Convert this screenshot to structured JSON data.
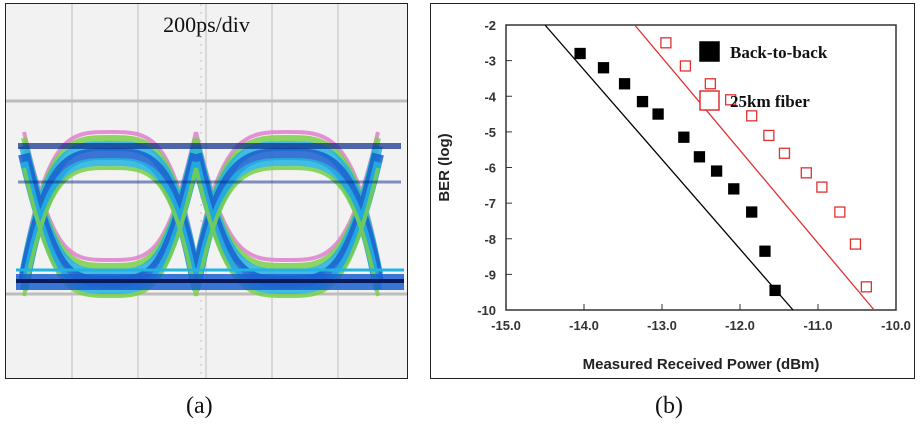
{
  "panel_a": {
    "scale_label": "200ps/div",
    "caption": "(a)"
  },
  "panel_b": {
    "caption": "(b)"
  },
  "chart_data": {
    "type": "scatter",
    "title": "",
    "xlabel": "Measured Received Power (dBm)",
    "ylabel": "BER (log)",
    "xlim": [
      -15.0,
      -10.0
    ],
    "ylim": [
      -10,
      -2
    ],
    "x_ticks": [
      "-15.0",
      "-14.0",
      "-13.0",
      "-12.0",
      "-11.0",
      "-10.0"
    ],
    "y_ticks": [
      "-2",
      "-3",
      "-4",
      "-5",
      "-6",
      "-7",
      "-8",
      "-9",
      "-10"
    ],
    "grid": false,
    "legend_position": "top-right",
    "series": [
      {
        "name": "Back-to-back",
        "marker": "filled-square",
        "color": "#000000",
        "x": [
          -14.05,
          -13.75,
          -13.48,
          -13.25,
          -13.05,
          -12.72,
          -12.52,
          -12.3,
          -12.08,
          -11.85,
          -11.68,
          -11.55
        ],
        "y": [
          -2.8,
          -3.2,
          -3.65,
          -4.15,
          -4.5,
          -5.15,
          -5.7,
          -6.1,
          -6.6,
          -7.25,
          -8.35,
          -9.45
        ],
        "fit": {
          "x": [
            -14.5,
            -11.32
          ],
          "y": [
            -2.0,
            -10.0
          ]
        }
      },
      {
        "name": "25km fiber",
        "marker": "open-square",
        "color": "#e03030",
        "x": [
          -12.95,
          -12.7,
          -12.38,
          -12.12,
          -11.85,
          -11.63,
          -11.43,
          -11.15,
          -10.95,
          -10.72,
          -10.52,
          -10.38
        ],
        "y": [
          -2.5,
          -3.15,
          -3.65,
          -4.1,
          -4.55,
          -5.1,
          -5.6,
          -6.15,
          -6.55,
          -7.25,
          -8.15,
          -9.35
        ],
        "fit": {
          "x": [
            -13.35,
            -10.28
          ],
          "y": [
            -2.0,
            -10.0
          ]
        }
      }
    ]
  }
}
